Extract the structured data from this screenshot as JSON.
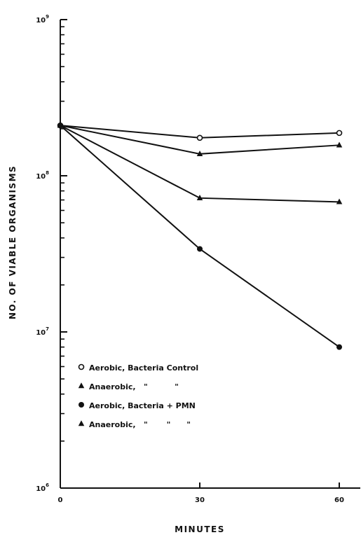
{
  "chart_data": {
    "type": "line",
    "title": "",
    "xlabel": "MINUTES",
    "ylabel": "NO. OF VIABLE ORGANISMS",
    "y_scale": "log",
    "xlim": [
      0,
      60
    ],
    "ylim": [
      1000000,
      1000000000
    ],
    "x_ticks": [
      {
        "value": 0,
        "label": "0"
      },
      {
        "value": 30,
        "label": "30"
      },
      {
        "value": 60,
        "label": "60"
      }
    ],
    "y_ticks": [
      {
        "value": 1000000,
        "base": "10",
        "exp": "6"
      },
      {
        "value": 10000000,
        "base": "10",
        "exp": "7"
      },
      {
        "value": 100000000,
        "base": "10",
        "exp": "8"
      },
      {
        "value": 1000000000,
        "base": "10",
        "exp": "9"
      }
    ],
    "grid": false,
    "legend_position": "bottom-left",
    "series": [
      {
        "marker": "circle-open",
        "x": [
          0,
          30,
          60
        ],
        "y": [
          210000000,
          175000000,
          188000000
        ]
      },
      {
        "marker": "triangle",
        "x": [
          0,
          30,
          60
        ],
        "y": [
          210000000,
          138000000,
          157000000
        ]
      },
      {
        "marker": "circle-filled",
        "x": [
          0,
          30,
          60
        ],
        "y": [
          210000000,
          34000000,
          8000000
        ]
      },
      {
        "marker": "triangle",
        "x": [
          0,
          30,
          60
        ],
        "y": [
          210000000,
          72000000,
          68000000
        ]
      }
    ],
    "legend": [
      {
        "marker": "circle-open",
        "text": "Aerobic, Bacteria Control"
      },
      {
        "marker": "triangle",
        "text": "Anaerobic,   \"          \""
      },
      {
        "marker": "circle-filled",
        "text": "Aerobic, Bacteria + PMN"
      },
      {
        "marker": "triangle",
        "text": "Anaerobic,   \"       \"      \""
      }
    ]
  }
}
